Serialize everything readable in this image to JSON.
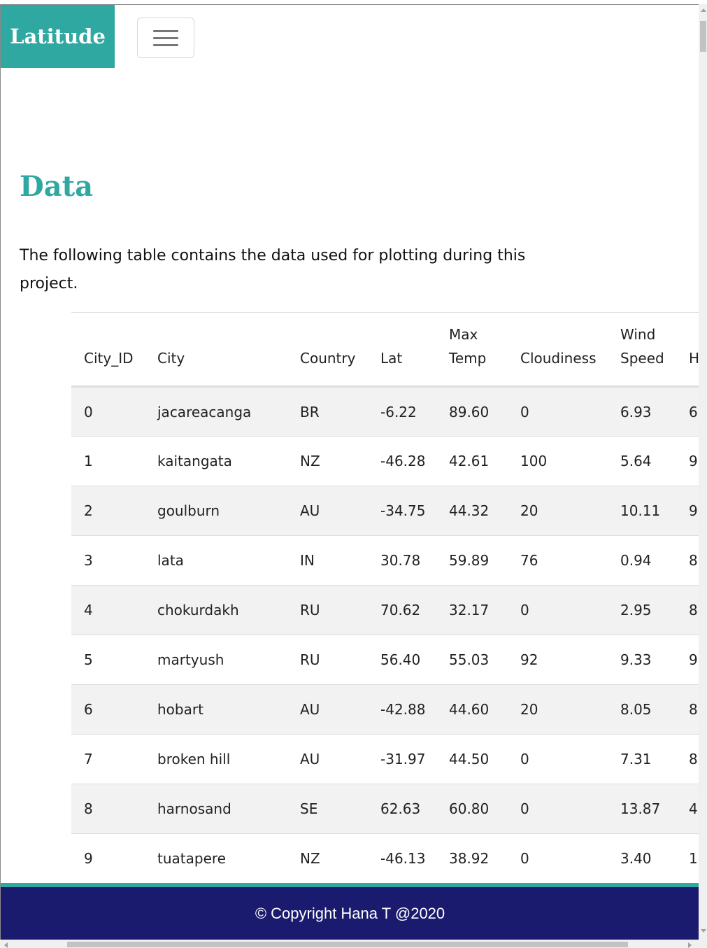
{
  "navbar": {
    "brand": "Latitude",
    "toggler_icon": "hamburger-menu-icon"
  },
  "main": {
    "title": "Data",
    "intro": "The following table contains the data used for plotting during this project."
  },
  "table": {
    "headers": [
      "City_ID",
      "City",
      "Country",
      "Lat",
      "Max\nTemp",
      "Cloudiness",
      "Wind\nSpeed",
      "H"
    ],
    "rows": [
      [
        "0",
        "jacareacanga",
        "BR",
        "-6.22",
        "89.60",
        "0",
        "6.93",
        "6"
      ],
      [
        "1",
        "kaitangata",
        "NZ",
        "-46.28",
        "42.61",
        "100",
        "5.64",
        "9"
      ],
      [
        "2",
        "goulburn",
        "AU",
        "-34.75",
        "44.32",
        "20",
        "10.11",
        "9"
      ],
      [
        "3",
        "lata",
        "IN",
        "30.78",
        "59.89",
        "76",
        "0.94",
        "8"
      ],
      [
        "4",
        "chokurdakh",
        "RU",
        "70.62",
        "32.17",
        "0",
        "2.95",
        "8"
      ],
      [
        "5",
        "martyush",
        "RU",
        "56.40",
        "55.03",
        "92",
        "9.33",
        "9"
      ],
      [
        "6",
        "hobart",
        "AU",
        "-42.88",
        "44.60",
        "20",
        "8.05",
        "8"
      ],
      [
        "7",
        "broken hill",
        "AU",
        "-31.97",
        "44.50",
        "0",
        "7.31",
        "8"
      ],
      [
        "8",
        "harnosand",
        "SE",
        "62.63",
        "60.80",
        "0",
        "13.87",
        "4"
      ],
      [
        "9",
        "tuatapere",
        "NZ",
        "-46.13",
        "38.92",
        "0",
        "3.40",
        "1"
      ]
    ]
  },
  "footer": {
    "text": "© Copyright Hana T @2020"
  },
  "colors": {
    "accent": "#2ea8a0",
    "footer_bg": "#1a1a6e",
    "row_stripe": "#f2f2f2"
  }
}
